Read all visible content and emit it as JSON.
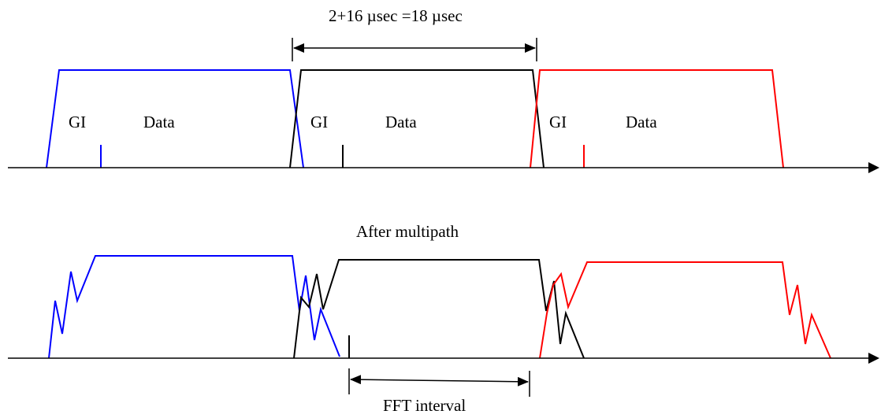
{
  "top_label": "2+16 µsec =18 µsec",
  "middle_label": "After multipath",
  "bottom_label": "FFT interval",
  "symbols": [
    {
      "gi_label": "GI",
      "data_label": "Data"
    },
    {
      "gi_label": "GI",
      "data_label": "Data"
    },
    {
      "gi_label": "GI",
      "data_label": "Data"
    }
  ],
  "colors": {
    "symbol1": "#0000ff",
    "symbol2": "#000000",
    "symbol3": "#ff0000",
    "axis": "#000000"
  }
}
